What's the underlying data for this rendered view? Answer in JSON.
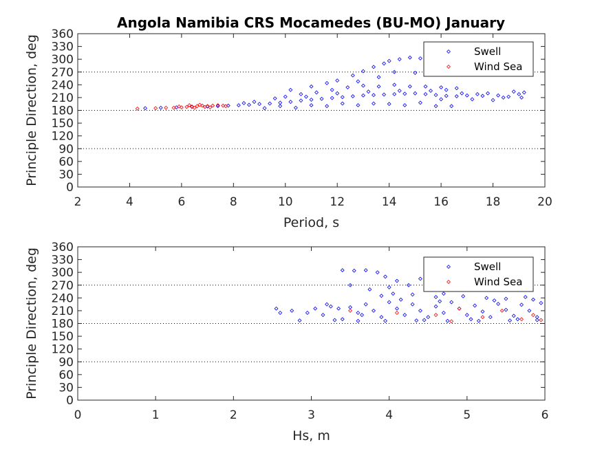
{
  "chart_data": [
    {
      "type": "scatter",
      "title": "Angola Namibia CRS Mocamedes (BU-MO) January",
      "xlabel": "Period, s",
      "ylabel": "Principle Direction, deg",
      "xlim": [
        2,
        20
      ],
      "ylim": [
        0,
        360
      ],
      "xticks": [
        "2",
        "4",
        "6",
        "8",
        "10",
        "12",
        "14",
        "16",
        "18",
        "20"
      ],
      "yticks": [
        "0",
        "30",
        "60",
        "90",
        "120",
        "150",
        "180",
        "210",
        "240",
        "270",
        "300",
        "330",
        "360"
      ],
      "reference_lines": [
        90,
        180,
        270
      ],
      "legend": {
        "position": "top-right",
        "entries": [
          "Swell",
          "Wind Sea"
        ]
      },
      "series": [
        {
          "name": "Swell",
          "color": "#0000ff",
          "points": [
            [
              4.6,
              185
            ],
            [
              5.2,
              186
            ],
            [
              5.8,
              187
            ],
            [
              6.4,
              188
            ],
            [
              7.0,
              189
            ],
            [
              7.4,
              190
            ],
            [
              7.8,
              191
            ],
            [
              8.2,
              192
            ],
            [
              8.6,
              193
            ],
            [
              9.0,
              195
            ],
            [
              9.4,
              196
            ],
            [
              9.8,
              198
            ],
            [
              10.2,
              200
            ],
            [
              10.6,
              203
            ],
            [
              11.0,
              205
            ],
            [
              11.4,
              207
            ],
            [
              11.8,
              209
            ],
            [
              12.2,
              211
            ],
            [
              12.6,
              213
            ],
            [
              13.0,
              215
            ],
            [
              13.4,
              216
            ],
            [
              13.8,
              217
            ],
            [
              14.2,
              218
            ],
            [
              14.6,
              219
            ],
            [
              15.0,
              220
            ],
            [
              15.4,
              218
            ],
            [
              15.8,
              216
            ],
            [
              16.2,
              214
            ],
            [
              16.6,
              213
            ],
            [
              17.0,
              215
            ],
            [
              17.4,
              218
            ],
            [
              17.8,
              220
            ],
            [
              18.2,
              215
            ],
            [
              18.6,
              212
            ],
            [
              19.0,
              218
            ],
            [
              19.2,
              222
            ],
            [
              9.2,
              185
            ],
            [
              9.8,
              190
            ],
            [
              10.4,
              186
            ],
            [
              11.0,
              192
            ],
            [
              11.6,
              190
            ],
            [
              12.2,
              196
            ],
            [
              12.8,
              192
            ],
            [
              13.4,
              196
            ],
            [
              14.0,
              195
            ],
            [
              14.6,
              192
            ],
            [
              15.2,
              198
            ],
            [
              15.8,
              190
            ],
            [
              16.4,
              190
            ],
            [
              10.0,
              212
            ],
            [
              10.6,
              218
            ],
            [
              11.2,
              222
            ],
            [
              11.8,
              228
            ],
            [
              12.4,
              234
            ],
            [
              13.0,
              238
            ],
            [
              13.6,
              236
            ],
            [
              14.2,
              240
            ],
            [
              14.8,
              236
            ],
            [
              15.4,
              236
            ],
            [
              16.0,
              234
            ],
            [
              16.6,
              232
            ],
            [
              12.0,
              250
            ],
            [
              12.6,
              262
            ],
            [
              13.0,
              272
            ],
            [
              13.4,
              282
            ],
            [
              13.8,
              290
            ],
            [
              14.0,
              296
            ],
            [
              14.4,
              300
            ],
            [
              14.8,
              304
            ],
            [
              15.2,
              302
            ],
            [
              15.6,
              303
            ],
            [
              16.0,
              300
            ],
            [
              14.2,
              270
            ],
            [
              13.6,
              258
            ],
            [
              12.8,
              248
            ],
            [
              15.0,
              268
            ],
            [
              10.2,
              228
            ],
            [
              11.0,
              236
            ],
            [
              11.6,
              244
            ],
            [
              9.6,
              208
            ],
            [
              8.8,
              200
            ],
            [
              8.4,
              197
            ],
            [
              10.8,
              212
            ],
            [
              12.0,
              220
            ],
            [
              13.2,
              224
            ],
            [
              14.4,
              226
            ],
            [
              15.6,
              226
            ],
            [
              16.2,
              228
            ],
            [
              16.8,
              220
            ],
            [
              17.6,
              214
            ],
            [
              18.4,
              210
            ],
            [
              18.8,
              224
            ],
            [
              19.1,
              210
            ],
            [
              17.2,
              206
            ],
            [
              18.0,
              204
            ],
            [
              16.0,
              206
            ]
          ]
        },
        {
          "name": "Wind Sea",
          "color": "#ff0000",
          "points": [
            [
              4.3,
              184
            ],
            [
              5.0,
              185
            ],
            [
              5.4,
              186
            ],
            [
              5.7,
              186
            ],
            [
              6.0,
              187
            ],
            [
              6.2,
              188
            ],
            [
              6.4,
              189
            ],
            [
              6.6,
              190
            ],
            [
              6.8,
              191
            ],
            [
              7.0,
              190
            ],
            [
              7.2,
              191
            ],
            [
              7.4,
              192
            ],
            [
              7.6,
              191
            ],
            [
              6.5,
              186
            ],
            [
              6.9,
              188
            ],
            [
              5.9,
              189
            ],
            [
              6.3,
              192
            ],
            [
              7.1,
              187
            ],
            [
              7.7,
              190
            ],
            [
              6.7,
              193
            ]
          ]
        }
      ]
    },
    {
      "type": "scatter",
      "xlabel": "Hs, m",
      "ylabel": "Principle Direction, deg",
      "xlim": [
        0,
        6
      ],
      "ylim": [
        0,
        360
      ],
      "xticks": [
        "0",
        "1",
        "2",
        "3",
        "4",
        "5",
        "6"
      ],
      "yticks": [
        "0",
        "30",
        "60",
        "90",
        "120",
        "150",
        "180",
        "210",
        "240",
        "270",
        "300",
        "330",
        "360"
      ],
      "reference_lines": [
        90,
        180,
        270
      ],
      "legend": {
        "position": "top-right",
        "entries": [
          "Swell",
          "Wind Sea"
        ]
      },
      "series": [
        {
          "name": "Swell",
          "color": "#0000ff",
          "points": [
            [
              2.55,
              215
            ],
            [
              2.6,
              205
            ],
            [
              2.75,
              210
            ],
            [
              2.85,
              187
            ],
            [
              2.95,
              205
            ],
            [
              3.05,
              215
            ],
            [
              3.15,
              200
            ],
            [
              3.25,
              220
            ],
            [
              3.35,
              215
            ],
            [
              3.4,
              190
            ],
            [
              3.5,
              218
            ],
            [
              3.6,
              205
            ],
            [
              3.7,
              225
            ],
            [
              3.8,
              210
            ],
            [
              3.9,
              195
            ],
            [
              4.0,
              230
            ],
            [
              4.1,
              215
            ],
            [
              4.2,
              200
            ],
            [
              4.3,
              225
            ],
            [
              4.4,
              210
            ],
            [
              4.5,
              195
            ],
            [
              4.6,
              220
            ],
            [
              4.7,
              205
            ],
            [
              4.8,
              230
            ],
            [
              4.9,
              215
            ],
            [
              5.0,
              200
            ],
            [
              5.1,
              222
            ],
            [
              5.2,
              208
            ],
            [
              5.3,
              195
            ],
            [
              5.4,
              226
            ],
            [
              5.5,
              212
            ],
            [
              5.6,
              198
            ],
            [
              5.7,
              224
            ],
            [
              5.8,
              210
            ],
            [
              5.9,
              195
            ],
            [
              5.95,
              228
            ],
            [
              3.4,
              305
            ],
            [
              3.55,
              304
            ],
            [
              3.7,
              305
            ],
            [
              3.85,
              300
            ],
            [
              3.95,
              290
            ],
            [
              4.1,
              280
            ],
            [
              4.25,
              270
            ],
            [
              4.4,
              285
            ],
            [
              4.55,
              260
            ],
            [
              4.7,
              250
            ],
            [
              4.85,
              262
            ],
            [
              5.0,
              275
            ],
            [
              5.2,
              290
            ],
            [
              5.4,
              300
            ],
            [
              5.6,
              280
            ],
            [
              5.8,
              300
            ],
            [
              3.75,
              260
            ],
            [
              3.9,
              245
            ],
            [
              4.05,
              250
            ],
            [
              4.3,
              248
            ],
            [
              4.6,
              242
            ],
            [
              4.95,
              244
            ],
            [
              5.25,
              240
            ],
            [
              5.5,
              238
            ],
            [
              5.75,
              242
            ],
            [
              3.3,
              188
            ],
            [
              3.6,
              186
            ],
            [
              3.95,
              186
            ],
            [
              4.35,
              187
            ],
            [
              4.75,
              186
            ],
            [
              5.15,
              186
            ],
            [
              5.55,
              187
            ],
            [
              5.9,
              188
            ],
            [
              3.2,
              225
            ],
            [
              4.15,
              236
            ],
            [
              4.65,
              232
            ],
            [
              5.35,
              234
            ],
            [
              5.85,
              236
            ],
            [
              3.65,
              200
            ],
            [
              4.45,
              188
            ],
            [
              5.05,
              190
            ],
            [
              5.65,
              190
            ],
            [
              3.5,
              270
            ],
            [
              4.0,
              265
            ]
          ]
        },
        {
          "name": "Wind Sea",
          "color": "#ff0000",
          "points": [
            [
              3.5,
              210
            ],
            [
              4.1,
              205
            ],
            [
              4.6,
              200
            ],
            [
              4.9,
              215
            ],
            [
              5.2,
              195
            ],
            [
              5.45,
              210
            ],
            [
              5.7,
              190
            ],
            [
              5.85,
              200
            ],
            [
              5.95,
              188
            ],
            [
              4.8,
              185
            ]
          ]
        }
      ]
    }
  ]
}
